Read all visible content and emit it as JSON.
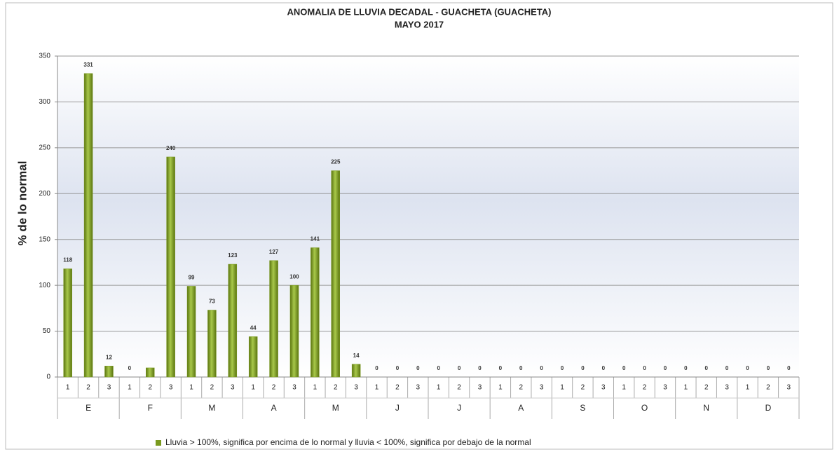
{
  "chart_data": {
    "type": "bar",
    "title": "ANOMALIA DE LLUVIA DECADAL - GUACHETA  (GUACHETA)",
    "subtitle": "MAYO 2017",
    "y_label": "% de lo normal",
    "categories": [
      "1",
      "2",
      "3",
      "1",
      "2",
      "3",
      "1",
      "2",
      "3",
      "1",
      "2",
      "3",
      "1",
      "2",
      "3",
      "1",
      "2",
      "3",
      "1",
      "2",
      "3",
      "1",
      "2",
      "3",
      "1",
      "2",
      "3",
      "1",
      "2",
      "3",
      "1",
      "2",
      "3",
      "1",
      "2",
      "3"
    ],
    "groups": [
      "E",
      "F",
      "M",
      "A",
      "M",
      "J",
      "J",
      "A",
      "S",
      "O",
      "N",
      "D"
    ],
    "series": [
      {
        "name": "Lluvia > 100%, significa por encima de lo normal y lluvia < 100%, significa por debajo de la normal",
        "color": "#7a9a1e",
        "values": [
          118,
          331,
          12,
          0,
          10,
          240,
          99,
          73,
          123,
          44,
          127,
          100,
          141,
          225,
          14,
          0,
          0,
          0,
          0,
          0,
          0,
          0,
          0,
          0,
          0,
          0,
          0,
          0,
          0,
          0,
          0,
          0,
          0,
          0,
          0,
          0
        ],
        "value_labels": [
          "118",
          "331",
          "12",
          "0",
          null,
          "240",
          "99",
          "73",
          "123",
          "44",
          "127",
          "100",
          "141",
          "225",
          "14",
          "0",
          "0",
          "0",
          "0",
          "0",
          "0",
          "0",
          "0",
          "0",
          "0",
          "0",
          "0",
          "0",
          "0",
          "0",
          "0",
          "0",
          "0",
          "0",
          "0",
          "0"
        ]
      }
    ],
    "ylim": [
      0,
      350
    ],
    "yticks": [
      0,
      50,
      100,
      150,
      200,
      250,
      300,
      350
    ],
    "grid": true,
    "legend": "bottom"
  }
}
